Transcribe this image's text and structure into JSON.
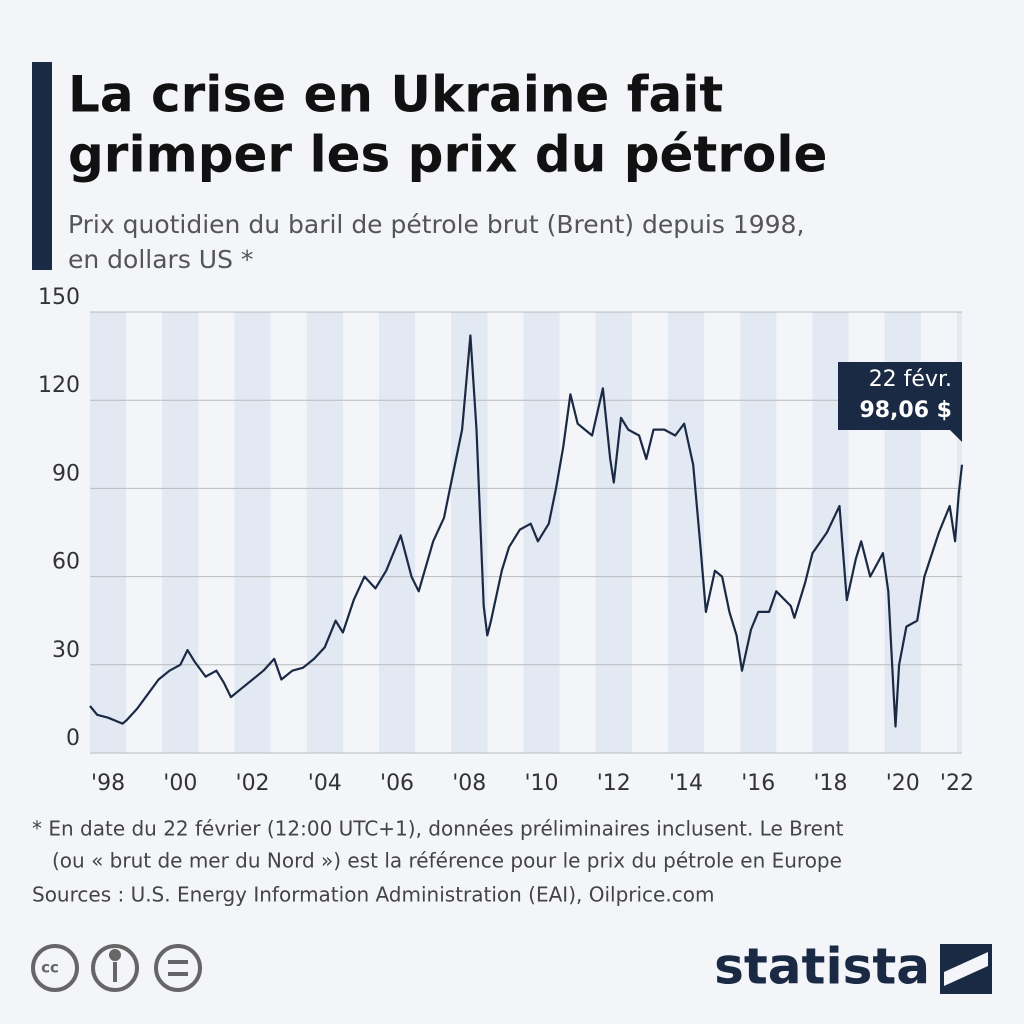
{
  "chart_data": {
    "type": "line",
    "title": [
      "La crise en Ukraine fait",
      "grimper les prix du pétrole"
    ],
    "subtitle": [
      "Prix quotidien du baril de pétrole brut (Brent) depuis 1998,",
      "en dollars US *"
    ],
    "x": [
      1998.0,
      1998.2,
      1998.5,
      1998.9,
      1999.0,
      1999.3,
      1999.6,
      1999.9,
      2000.2,
      2000.5,
      2000.7,
      2000.9,
      2001.2,
      2001.5,
      2001.7,
      2001.9,
      2002.2,
      2002.5,
      2002.8,
      2003.1,
      2003.3,
      2003.6,
      2003.9,
      2004.2,
      2004.5,
      2004.8,
      2005.0,
      2005.3,
      2005.6,
      2005.9,
      2006.2,
      2006.6,
      2006.9,
      2007.1,
      2007.5,
      2007.8,
      2008.0,
      2008.3,
      2008.53,
      2008.7,
      2008.9,
      2009.0,
      2009.1,
      2009.4,
      2009.6,
      2009.9,
      2010.2,
      2010.4,
      2010.7,
      2010.9,
      2011.1,
      2011.3,
      2011.5,
      2011.7,
      2011.9,
      2012.2,
      2012.4,
      2012.5,
      2012.7,
      2012.9,
      2013.2,
      2013.4,
      2013.6,
      2013.9,
      2014.2,
      2014.45,
      2014.7,
      2014.9,
      2015.05,
      2015.3,
      2015.5,
      2015.7,
      2015.9,
      2016.05,
      2016.3,
      2016.5,
      2016.8,
      2017.0,
      2017.4,
      2017.5,
      2017.8,
      2018.0,
      2018.4,
      2018.75,
      2018.95,
      2019.2,
      2019.35,
      2019.6,
      2019.95,
      2020.1,
      2020.25,
      2020.3,
      2020.4,
      2020.6,
      2020.9,
      2021.1,
      2021.5,
      2021.8,
      2021.95,
      2022.05,
      2022.14
    ],
    "values": [
      16,
      13,
      12,
      10,
      11,
      15,
      20,
      25,
      28,
      30,
      35,
      31,
      26,
      28,
      24,
      19,
      22,
      25,
      28,
      32,
      25,
      28,
      29,
      32,
      36,
      45,
      41,
      52,
      60,
      56,
      62,
      74,
      60,
      55,
      72,
      80,
      92,
      110,
      142,
      110,
      50,
      40,
      45,
      62,
      70,
      76,
      78,
      72,
      78,
      90,
      104,
      122,
      112,
      110,
      108,
      124,
      100,
      92,
      114,
      110,
      108,
      100,
      110,
      110,
      108,
      112,
      98,
      70,
      48,
      62,
      60,
      48,
      40,
      28,
      42,
      48,
      48,
      55,
      50,
      46,
      58,
      68,
      75,
      84,
      52,
      66,
      72,
      60,
      68,
      55,
      20,
      9,
      30,
      43,
      45,
      60,
      75,
      84,
      72,
      88,
      98.06
    ],
    "color": "#1b2a44",
    "xlim": [
      1998.0,
      2022.14
    ],
    "xticks": [
      {
        "value": 1998.5,
        "label": "'98"
      },
      {
        "value": 2000.5,
        "label": "'00"
      },
      {
        "value": 2002.5,
        "label": "'02"
      },
      {
        "value": 2004.5,
        "label": "'04"
      },
      {
        "value": 2006.5,
        "label": "'06"
      },
      {
        "value": 2008.5,
        "label": "'08"
      },
      {
        "value": 2010.5,
        "label": "'10"
      },
      {
        "value": 2012.5,
        "label": "'12"
      },
      {
        "value": 2014.5,
        "label": "'14"
      },
      {
        "value": 2016.5,
        "label": "'16"
      },
      {
        "value": 2018.5,
        "label": "'18"
      },
      {
        "value": 2020.5,
        "label": "'20"
      },
      {
        "value": 2022,
        "label": "'22"
      }
    ],
    "ylim": [
      0,
      150
    ],
    "yticks": [
      0,
      30,
      60,
      90,
      120,
      150
    ],
    "grid": true,
    "annotation": {
      "date": "22 févr.",
      "label": "98,06 $"
    },
    "footnote": [
      "* En date du 22 février (12:00 UTC+1), données préliminaires inclusent. Le Brent",
      "(ou « brut de mer du Nord ») est la référence pour le prix du pétrole en Europe"
    ],
    "source": "Sources : U.S. Energy Information Administration (EAI), Oilprice.com",
    "brand": "statista"
  }
}
